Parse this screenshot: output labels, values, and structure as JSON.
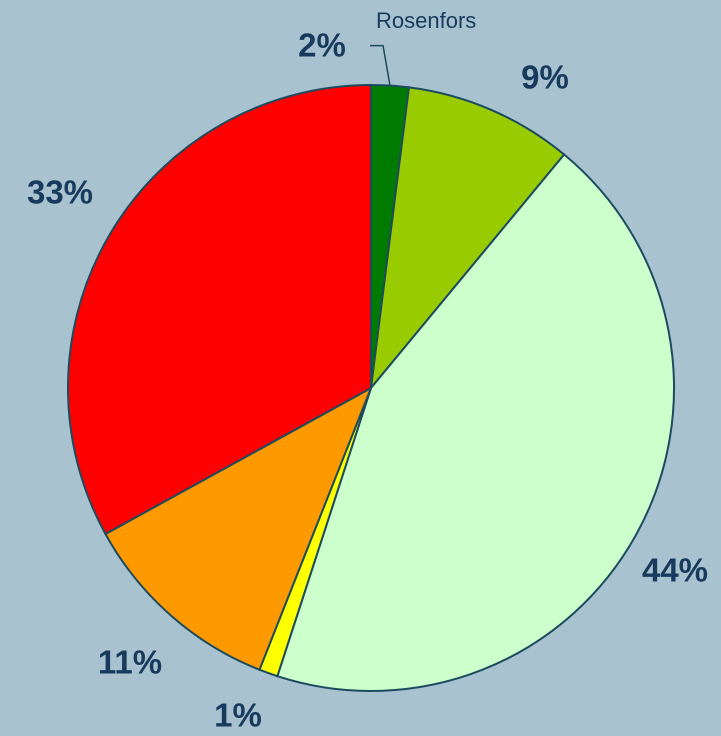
{
  "chart_data": {
    "type": "pie",
    "categories": [
      "Rosenfors",
      null,
      null,
      null,
      null,
      null
    ],
    "values": [
      2,
      9,
      44,
      1,
      11,
      33
    ],
    "value_labels": [
      "2%",
      "9%",
      "44%",
      "1%",
      "11%",
      "33%"
    ],
    "colors": [
      "#007a00",
      "#99cc00",
      "#ccffcc",
      "#ffff00",
      "#ff9900",
      "#ff0000"
    ]
  }
}
